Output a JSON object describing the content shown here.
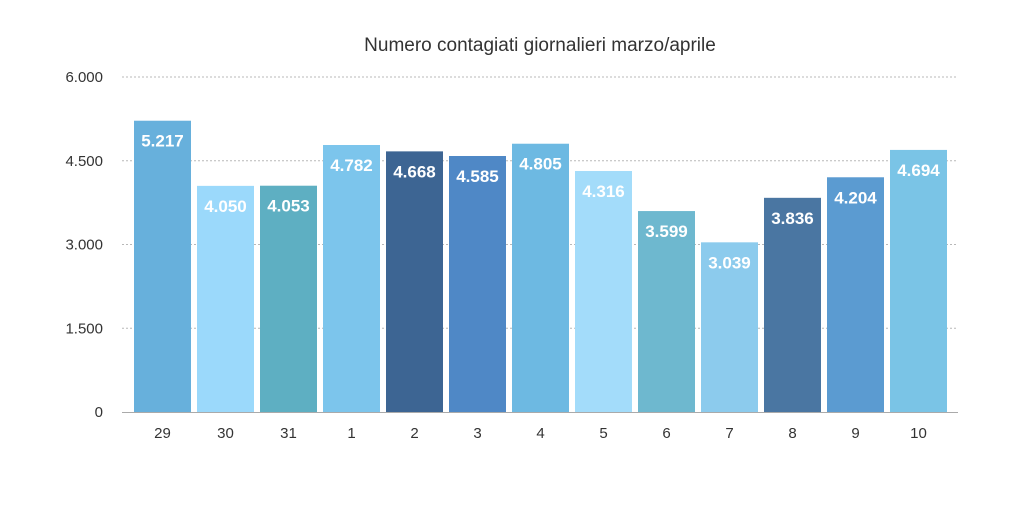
{
  "chart_data": {
    "type": "bar",
    "title": "Numero contagiati giornalieri marzo/aprile",
    "xlabel": "",
    "ylabel": "",
    "categories": [
      "29",
      "30",
      "31",
      "1",
      "2",
      "3",
      "4",
      "5",
      "6",
      "7",
      "8",
      "9",
      "10"
    ],
    "values": [
      5217,
      4050,
      4053,
      4782,
      4668,
      4585,
      4805,
      4316,
      3599,
      3039,
      3836,
      4204,
      4694
    ],
    "data_labels": [
      "5.217",
      "4.050",
      "4.053",
      "4.782",
      "4.668",
      "4.585",
      "4.805",
      "4.316",
      "3.599",
      "3.039",
      "3.836",
      "4.204",
      "4.694"
    ],
    "ylim": [
      0,
      6000
    ],
    "yticks": [
      0,
      1500,
      3000,
      4500,
      6000
    ],
    "ytick_labels": [
      "0",
      "1.500",
      "3.000",
      "4.500",
      "6.000"
    ],
    "grid": true,
    "legend": "none",
    "bar_colors": [
      "#67b0dc",
      "#9bd9fb",
      "#5eafc2",
      "#7cc5ec",
      "#3d6593",
      "#4f88c6",
      "#6db9e2",
      "#a3dcfa",
      "#6eb8cf",
      "#8ccbed",
      "#4a76a2",
      "#5b9bd1",
      "#7ac4e6"
    ],
    "label_color": "#ffffff"
  }
}
